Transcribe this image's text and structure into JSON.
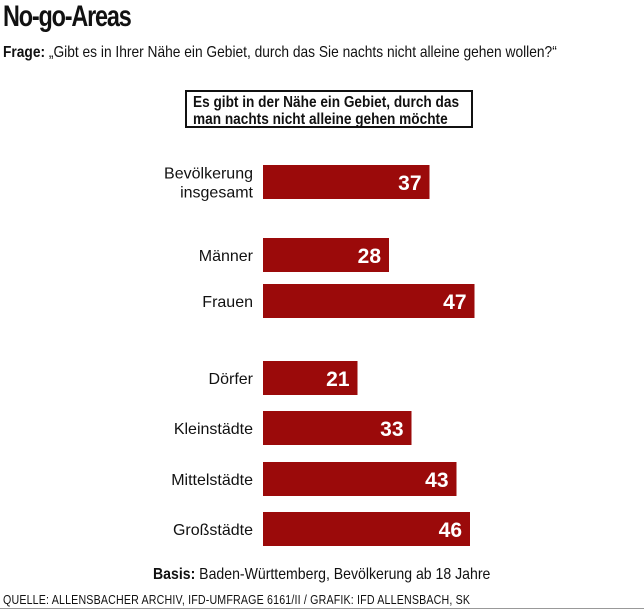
{
  "title": "No-go-Areas",
  "question": {
    "label": "Frage:",
    "text": "„Gibt es in Ihrer Nähe ein Gebiet, durch das Sie nachts nicht alleine gehen wollen?“"
  },
  "chart_data": {
    "type": "bar",
    "orientation": "horizontal",
    "title": "Es gibt in der Nähe ein Gebiet, durch das man nachts nicht alleine gehen möchte",
    "title_lines": [
      "Es gibt in der Nähe ein Gebiet, durch das",
      "man nachts nicht alleine gehen möchte"
    ],
    "categories": [
      "Bevölkerung insgesamt",
      "Männer",
      "Frauen",
      "Dörfer",
      "Kleinstädte",
      "Mittelstädte",
      "Großstädte"
    ],
    "category_lines": [
      [
        "Bevölkerung",
        "insgesamt"
      ],
      [
        "Männer"
      ],
      [
        "Frauen"
      ],
      [
        "Dörfer"
      ],
      [
        "Kleinstädte"
      ],
      [
        "Mittelstädte"
      ],
      [
        "Großstädte"
      ]
    ],
    "values": [
      37,
      28,
      47,
      21,
      33,
      43,
      46
    ],
    "groups": [
      [
        "Bevölkerung insgesamt"
      ],
      [
        "Männer",
        "Frauen"
      ],
      [
        "Dörfer",
        "Kleinstädte",
        "Mittelstädte",
        "Großstädte"
      ]
    ],
    "bar_color": "#9b0a0a",
    "label_color": "#ffffff",
    "grid": false
  },
  "basis": {
    "label": "Basis:",
    "text": "Baden-Württemberg, Bevölkerung ab 18 Jahre"
  },
  "source": "QUELLE: ALLENSBACHER ARCHIV, IFD-UMFRAGE 6161/II  /  GRAFIK: IFD ALLENSBACH, SK"
}
